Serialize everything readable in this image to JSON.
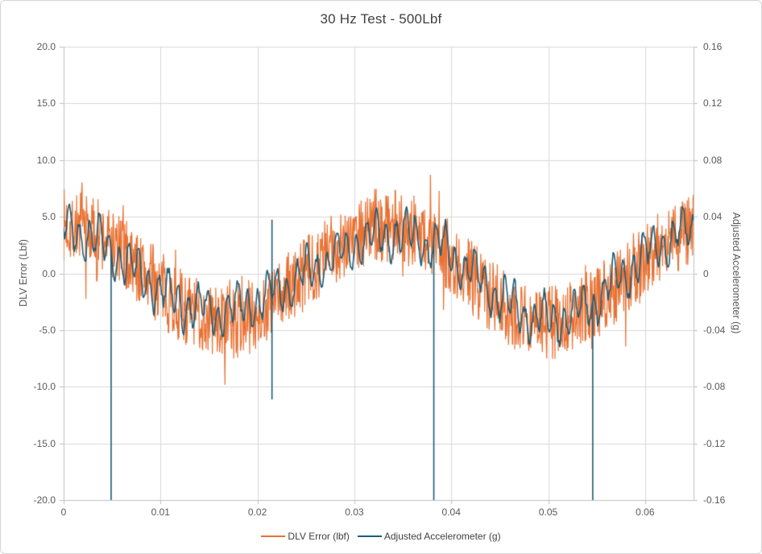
{
  "chart_data": {
    "type": "line",
    "title": "30 Hz Test - 500Lbf",
    "grid": true,
    "legend_position": "bottom",
    "colors": {
      "series_dlv_error": "#E97132",
      "series_accelerometer": "#1E5C77",
      "gridline": "#D9D9D9",
      "axis_line": "#BFBFBF",
      "tick_text": "#595959",
      "title_text": "#404040"
    },
    "x_axis": {
      "min": 0,
      "max": 0.065,
      "tick_values": [
        0,
        0.01,
        0.02,
        0.03,
        0.04,
        0.05,
        0.06
      ],
      "tick_labels": [
        "0",
        "0.01",
        "0.02",
        "0.03",
        "0.04",
        "0.05",
        "0.06"
      ]
    },
    "y_left": {
      "label": "DLV Error (Lbf)",
      "min": -20,
      "max": 20,
      "tick_values": [
        20,
        15,
        10,
        5,
        0,
        -5,
        -10,
        -15,
        -20
      ],
      "tick_labels": [
        "20.0",
        "15.0",
        "10.0",
        "5.0",
        "0.0",
        "-5.0",
        "-10.0",
        "-15.0",
        "-20.0"
      ]
    },
    "y_right": {
      "label": "Adjusted Accelerometer (g)",
      "min": -0.16,
      "max": 0.16,
      "tick_values": [
        0.16,
        0.12,
        0.08,
        0.04,
        0,
        -0.04,
        -0.08,
        -0.12,
        -0.16
      ],
      "tick_labels": [
        "0.16",
        "0.12",
        "0.08",
        "0.04",
        "0",
        "-0.04",
        "-0.08",
        "-0.12",
        "-0.16"
      ]
    },
    "series": [
      {
        "name": "DLV Error (lbf)",
        "axis": "left",
        "color": "#E97132",
        "synth": "noisy_sine",
        "carrier": {
          "freq_hz": 30,
          "amplitude": 4.3
        },
        "noise_amplitude": 3.3,
        "burst_chance": 0.03,
        "burst_scale": 1.9,
        "sample_dt": 5e-05,
        "seed": 7,
        "line_width": 1.2
      },
      {
        "name": "Adjusted Accelerometer (g)",
        "axis": "right",
        "color": "#1E5C77",
        "synth": "sine_ripple",
        "carrier": {
          "freq_hz": 30,
          "amplitude": 0.029
        },
        "ripples": [
          {
            "freq_hz": 980,
            "amplitude": 0.012,
            "phase": 4.0
          },
          {
            "freq_hz": 283,
            "amplitude": 0.008,
            "phase": 1.2
          },
          {
            "freq_hz": 47,
            "amplitude": 0.004,
            "phase": 2.3
          }
        ],
        "noise_amplitude": 0.004,
        "sample_dt": 0.0001,
        "seed": 3,
        "line_width": 1.6,
        "spikes": [
          {
            "t": 0.0049,
            "down": -0.16,
            "up": null
          },
          {
            "t": 0.0215,
            "down": -0.089,
            "up": 0.038
          },
          {
            "t": 0.0382,
            "down": -0.16,
            "up": null
          },
          {
            "t": 0.0546,
            "down": -0.16,
            "up": null
          }
        ]
      }
    ]
  }
}
